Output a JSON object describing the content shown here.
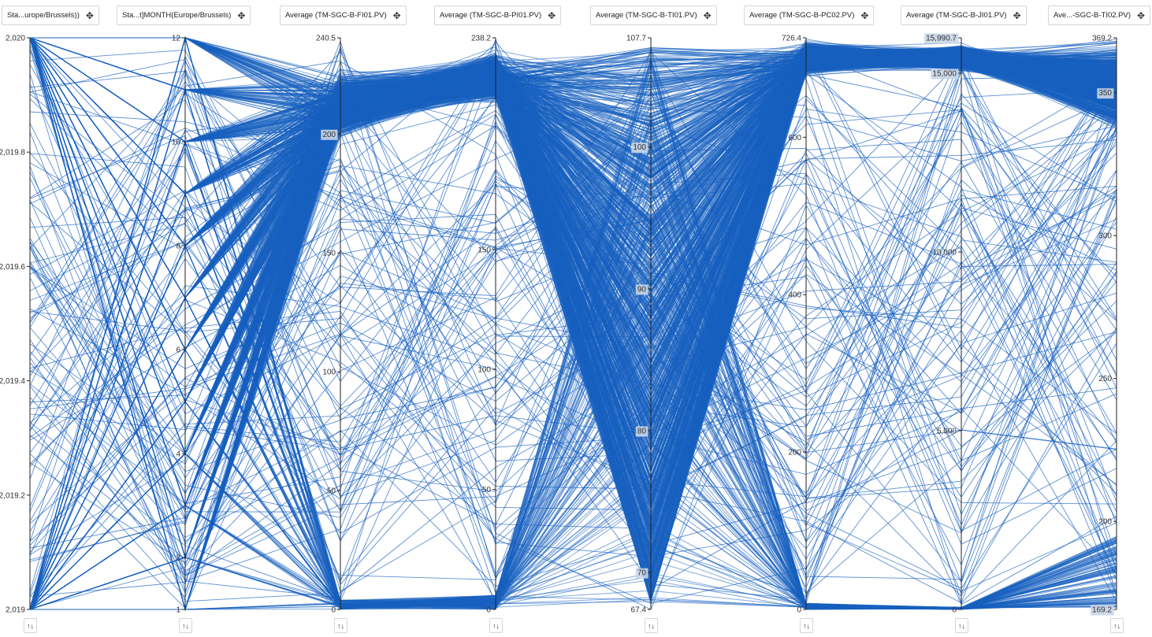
{
  "chart_data": {
    "type": "parallel-coordinates",
    "line_color": "#1760c0",
    "axes": [
      {
        "header": "Sta...urope/Brussels))",
        "min": 2019,
        "max": 2020,
        "ticks": [
          {
            "v": 2019,
            "label": "2,019"
          },
          {
            "v": 2019.2,
            "label": "2,019.2"
          },
          {
            "v": 2019.4,
            "label": "2,019.4"
          },
          {
            "v": 2019.6,
            "label": "2,019.6"
          },
          {
            "v": 2019.8,
            "label": "2,019.8"
          },
          {
            "v": 2020,
            "label": "2,020"
          }
        ]
      },
      {
        "header": "Sta...t]MONTH(Europe/Brussels)",
        "min": 1,
        "max": 12,
        "ticks": [
          {
            "v": 1,
            "label": "1"
          },
          {
            "v": 2,
            "label": "2"
          },
          {
            "v": 4,
            "label": "4"
          },
          {
            "v": 6,
            "label": "6"
          },
          {
            "v": 8,
            "label": "8"
          },
          {
            "v": 10,
            "label": "10"
          },
          {
            "v": 12,
            "label": "12"
          }
        ]
      },
      {
        "header": "Average (TM-SGC-B-FI01.PV)",
        "min": 0,
        "max": 240.5,
        "ticks": [
          {
            "v": 0,
            "label": "0"
          },
          {
            "v": 50,
            "label": "50"
          },
          {
            "v": 100,
            "label": "100"
          },
          {
            "v": 150,
            "label": "150"
          },
          {
            "v": 200,
            "label": "200",
            "hl": true
          },
          {
            "v": 240.5,
            "label": "240.5"
          }
        ]
      },
      {
        "header": "Average (TM-SGC-B-PI01.PV)",
        "min": 0,
        "max": 238.2,
        "ticks": [
          {
            "v": 0,
            "label": "0"
          },
          {
            "v": 50,
            "label": "50"
          },
          {
            "v": 100,
            "label": "100"
          },
          {
            "v": 150,
            "label": "150"
          },
          {
            "v": 238.2,
            "label": "238.2"
          }
        ]
      },
      {
        "header": "Average (TM-SGC-B-TI01.PV)",
        "min": 67.4,
        "max": 107.7,
        "ticks": [
          {
            "v": 67.4,
            "label": "67.4"
          },
          {
            "v": 70,
            "label": "70",
            "hl": true
          },
          {
            "v": 80,
            "label": "80",
            "hl": true
          },
          {
            "v": 90,
            "label": "90",
            "hl": true
          },
          {
            "v": 100,
            "label": "100",
            "hl": true
          },
          {
            "v": 107.7,
            "label": "107.7"
          }
        ]
      },
      {
        "header": "Average (TM-SGC-B-PC02.PV)",
        "min": 0,
        "max": 726.4,
        "ticks": [
          {
            "v": 0,
            "label": "0"
          },
          {
            "v": 200,
            "label": "200"
          },
          {
            "v": 400,
            "label": "400"
          },
          {
            "v": 600,
            "label": "600"
          },
          {
            "v": 726.4,
            "label": "726.4"
          }
        ]
      },
      {
        "header": "Average (TM-SGC-B-JI01.PV)",
        "min": 0,
        "max": 15990.7,
        "ticks": [
          {
            "v": 0,
            "label": "0"
          },
          {
            "v": 5000,
            "label": "5,000"
          },
          {
            "v": 10000,
            "label": "10,000"
          },
          {
            "v": 15000,
            "label": "15,000",
            "hl": true
          },
          {
            "v": 15990.7,
            "label": "15,990.7",
            "hl": true
          }
        ]
      },
      {
        "header": "Ave...-SGC-B-TI02.PV)",
        "min": 169.2,
        "max": 369.2,
        "ticks": [
          {
            "v": 169.2,
            "label": "169.2",
            "hl": true
          },
          {
            "v": 200,
            "label": "200"
          },
          {
            "v": 250,
            "label": "250"
          },
          {
            "v": 300,
            "label": "300"
          },
          {
            "v": 350,
            "label": "350",
            "hl": true
          },
          {
            "v": 369.2,
            "label": "369.2"
          }
        ]
      }
    ],
    "sort_icon": "↑↓",
    "move_icon": "✥"
  }
}
